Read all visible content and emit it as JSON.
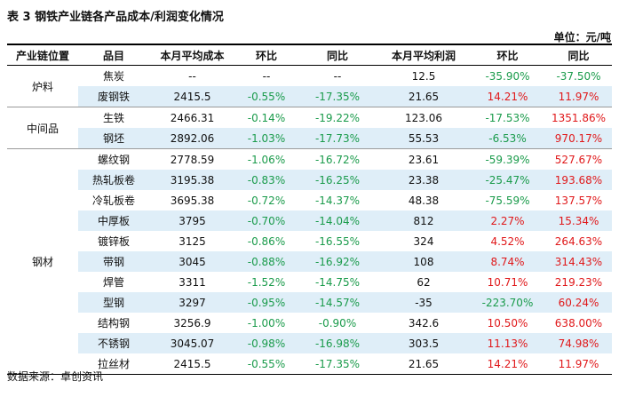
{
  "title": "表 3 钢铁产业链各产品成本/利润变化情况",
  "unit": "单位：元/吨",
  "headers": [
    "产业链位置",
    "品目",
    "本月平均成本",
    "环比",
    "同比",
    "本月平均利润",
    "环比",
    "同比"
  ],
  "groups": [
    {
      "name": "炉料",
      "rows": [
        {
          "item": "焦炭",
          "cost": "--",
          "cost_mom": "--",
          "cost_yoy": "--",
          "profit": "12.5",
          "profit_mom": "-35.90%",
          "profit_yoy": "-37.50%"
        },
        {
          "item": "废钢铁",
          "cost": "2415.5",
          "cost_mom": "-0.55%",
          "cost_yoy": "-17.35%",
          "profit": "21.65",
          "profit_mom": "14.21%",
          "profit_yoy": "11.97%"
        }
      ]
    },
    {
      "name": "中间品",
      "rows": [
        {
          "item": "生铁",
          "cost": "2466.31",
          "cost_mom": "-0.14%",
          "cost_yoy": "-19.22%",
          "profit": "123.06",
          "profit_mom": "-17.53%",
          "profit_yoy": "1351.86%"
        },
        {
          "item": "钢坯",
          "cost": "2892.06",
          "cost_mom": "-1.03%",
          "cost_yoy": "-17.73%",
          "profit": "55.53",
          "profit_mom": "-6.53%",
          "profit_yoy": "970.17%"
        }
      ]
    },
    {
      "name": "钢材",
      "rows": [
        {
          "item": "螺纹钢",
          "cost": "2778.59",
          "cost_mom": "-1.06%",
          "cost_yoy": "-16.72%",
          "profit": "23.61",
          "profit_mom": "-59.39%",
          "profit_yoy": "527.67%"
        },
        {
          "item": "热轧板卷",
          "cost": "3195.38",
          "cost_mom": "-0.83%",
          "cost_yoy": "-16.25%",
          "profit": "23.38",
          "profit_mom": "-25.47%",
          "profit_yoy": "193.68%"
        },
        {
          "item": "冷轧板卷",
          "cost": "3695.38",
          "cost_mom": "-0.72%",
          "cost_yoy": "-14.37%",
          "profit": "48.38",
          "profit_mom": "-75.59%",
          "profit_yoy": "137.57%"
        },
        {
          "item": "中厚板",
          "cost": "3795",
          "cost_mom": "-0.70%",
          "cost_yoy": "-14.04%",
          "profit": "812",
          "profit_mom": "2.27%",
          "profit_yoy": "15.34%"
        },
        {
          "item": "镀锌板",
          "cost": "3125",
          "cost_mom": "-0.86%",
          "cost_yoy": "-16.55%",
          "profit": "324",
          "profit_mom": "4.52%",
          "profit_yoy": "264.63%"
        },
        {
          "item": "带钢",
          "cost": "3045",
          "cost_mom": "-0.88%",
          "cost_yoy": "-16.92%",
          "profit": "108",
          "profit_mom": "8.74%",
          "profit_yoy": "314.43%"
        },
        {
          "item": "焊管",
          "cost": "3311",
          "cost_mom": "-1.52%",
          "cost_yoy": "-14.75%",
          "profit": "62",
          "profit_mom": "10.71%",
          "profit_yoy": "219.23%"
        },
        {
          "item": "型钢",
          "cost": "3297",
          "cost_mom": "-0.95%",
          "cost_yoy": "-14.57%",
          "profit": "-35",
          "profit_mom": "-223.70%",
          "profit_yoy": "60.24%"
        },
        {
          "item": "结构钢",
          "cost": "3256.9",
          "cost_mom": "-1.00%",
          "cost_yoy": "-0.90%",
          "profit": "342.6",
          "profit_mom": "10.50%",
          "profit_yoy": "638.00%"
        },
        {
          "item": "不锈钢",
          "cost": "3045.07",
          "cost_mom": "-0.98%",
          "cost_yoy": "-16.98%",
          "profit": "303.5",
          "profit_mom": "11.13%",
          "profit_yoy": "74.98%"
        },
        {
          "item": "拉丝材",
          "cost": "2415.5",
          "cost_mom": "-0.55%",
          "cost_yoy": "-17.35%",
          "profit": "21.65",
          "profit_mom": "14.21%",
          "profit_yoy": "11.97%"
        }
      ]
    }
  ],
  "footer": "数据来源：卓创资讯",
  "colors": {
    "positive": "#e0181a",
    "negative": "#1a9b4b",
    "row_stripe": "#dfeef8"
  }
}
